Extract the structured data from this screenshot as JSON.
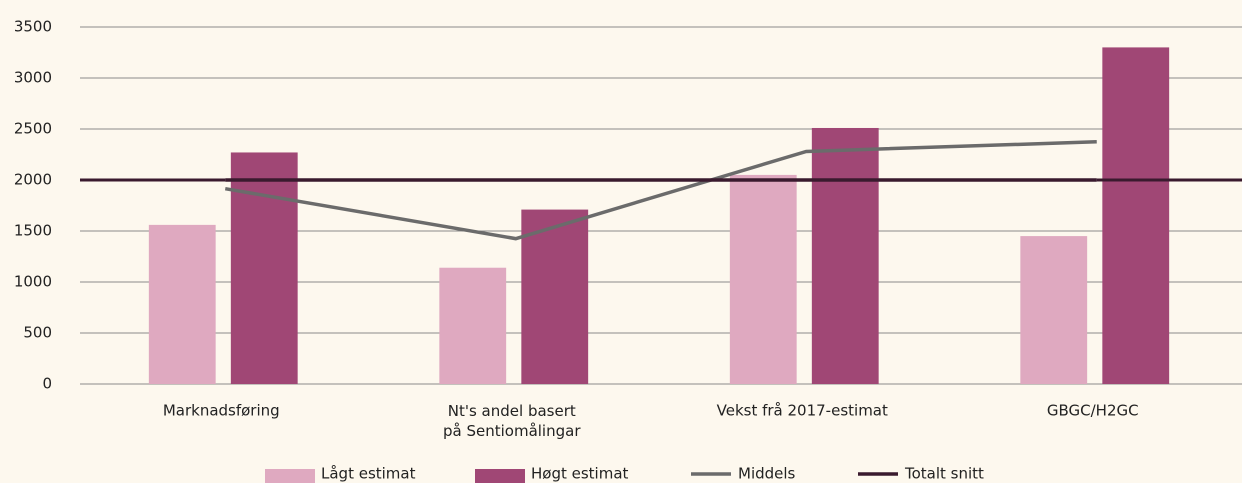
{
  "chart_data": {
    "type": "bar",
    "categories": [
      "Marknadsføring",
      "Nt's andel basert\npå Sentiomålingar",
      "Vekst frå 2017-estimat",
      "GBGC/H2GC"
    ],
    "series": [
      {
        "name": "Lågt estimat",
        "type": "bar",
        "color": "#dfa9c0",
        "values": [
          1560,
          1140,
          2050,
          1450
        ]
      },
      {
        "name": "Høgt estimat",
        "type": "bar",
        "color": "#a04775",
        "values": [
          2270,
          1710,
          2510,
          3300
        ]
      },
      {
        "name": "Middels",
        "type": "line",
        "color": "#6b6b6b",
        "values": [
          1915,
          1425,
          2280,
          2375
        ]
      },
      {
        "name": "Totalt snitt",
        "type": "line",
        "color": "#3a1a2e",
        "values": [
          2000,
          2000,
          2000,
          2000
        ]
      }
    ],
    "ylim": [
      0,
      3500
    ],
    "yticks": [
      0,
      500,
      1000,
      1500,
      2000,
      2500,
      3000,
      3500
    ],
    "grid": true,
    "legend": "bottom"
  }
}
